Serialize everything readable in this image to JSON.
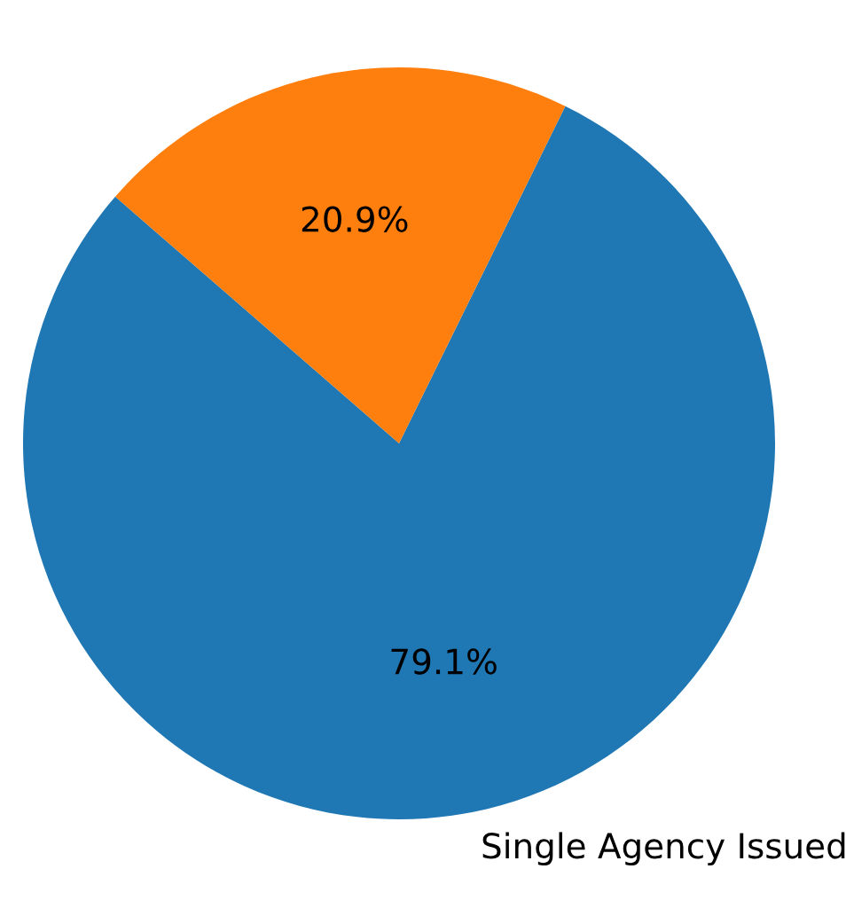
{
  "chart_data": {
    "type": "pie",
    "categories": [
      "Single Agency Issued",
      null
    ],
    "values": [
      79.1,
      20.9
    ],
    "colors": [
      "#1f77b4",
      "#ff7f0e"
    ],
    "value_labels": [
      "79.1%",
      "20.9%"
    ]
  }
}
